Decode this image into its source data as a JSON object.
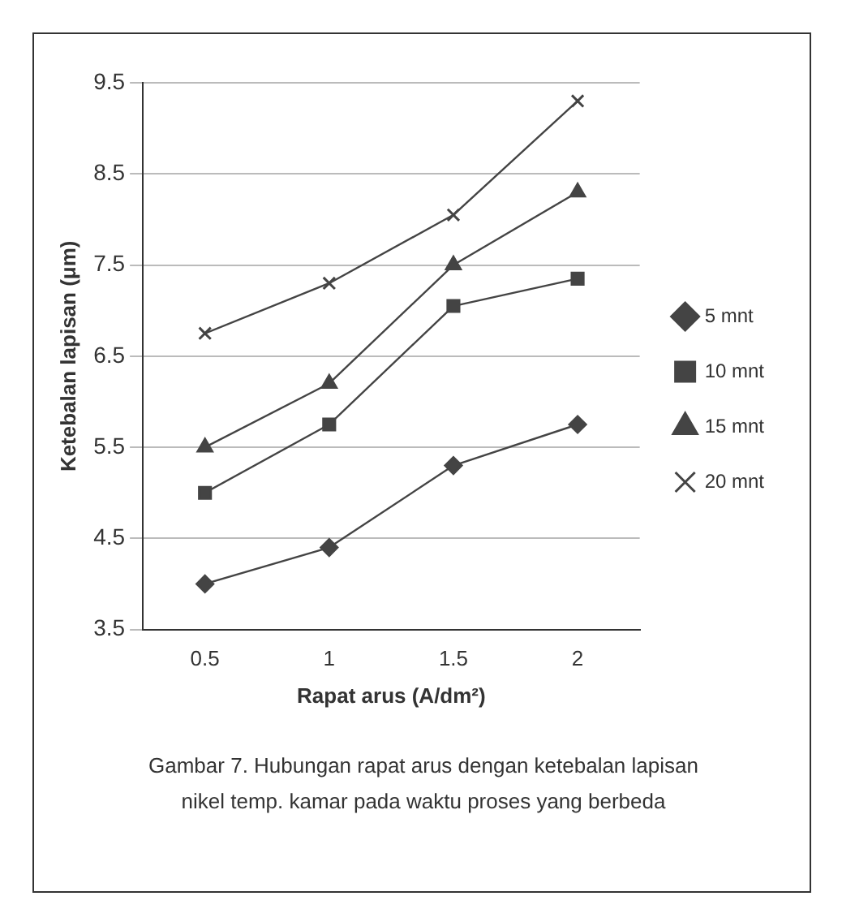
{
  "chart_data": {
    "type": "line",
    "xlabel": "Rapat arus (A/dm²)",
    "ylabel": "Ketebalan lapisan (μm)",
    "categories": [
      "0.5",
      "1",
      "1.5",
      "2"
    ],
    "series": [
      {
        "name": "5 mnt",
        "color": "#444444",
        "marker": "diamond",
        "values": [
          4.0,
          4.4,
          5.3,
          5.75
        ]
      },
      {
        "name": "10 mnt",
        "color": "#444444",
        "marker": "square",
        "values": [
          5.0,
          5.75,
          7.05,
          7.35
        ]
      },
      {
        "name": "15 mnt",
        "color": "#444444",
        "marker": "triangle",
        "values": [
          5.5,
          6.2,
          7.5,
          8.3
        ]
      },
      {
        "name": "20 mnt",
        "color": "#444444",
        "marker": "cross",
        "values": [
          6.75,
          7.3,
          8.05,
          9.3
        ]
      }
    ],
    "ylim": [
      3.5,
      9.5
    ],
    "yticks": [
      3.5,
      4.5,
      5.5,
      6.5,
      7.5,
      8.5,
      9.5
    ],
    "grid": "y",
    "legend": "right",
    "line_style": "solid",
    "annotations": [
      "Gambar 7. Hubungan rapat arus dengan ketebalan lapisan nikel temp. kamar pada waktu proses yang berbeda"
    ]
  }
}
